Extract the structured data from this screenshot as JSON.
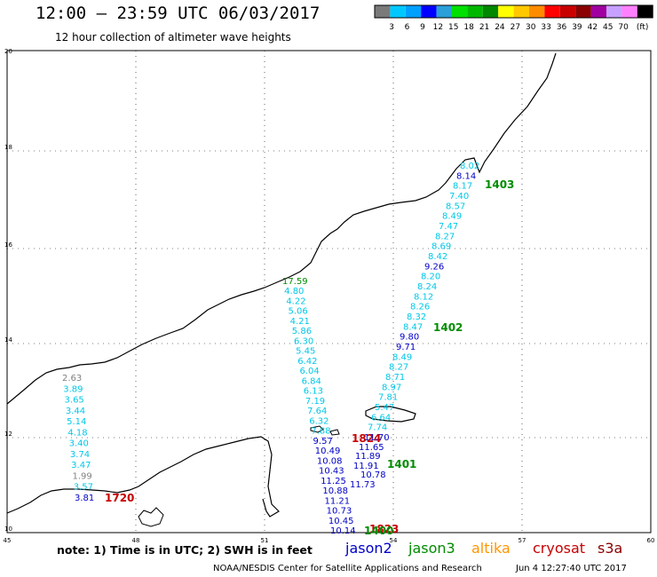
{
  "header": {
    "title": "12:00 – 23:59 UTC 06/03/2017",
    "subtitle": "12 hour collection of altimeter wave heights"
  },
  "colorbar": {
    "unit": "(ft)",
    "bins": [
      {
        "label": "",
        "color": "#7a7a7a"
      },
      {
        "label": "3",
        "color": "#00c8ff"
      },
      {
        "label": "6",
        "color": "#00a0ff"
      },
      {
        "label": "9",
        "color": "#0000ff"
      },
      {
        "label": "12",
        "color": "#2a9fd8"
      },
      {
        "label": "15",
        "color": "#00e000"
      },
      {
        "label": "18",
        "color": "#00b800"
      },
      {
        "label": "21",
        "color": "#008800"
      },
      {
        "label": "24",
        "color": "#ffff00"
      },
      {
        "label": "27",
        "color": "#ffc800"
      },
      {
        "label": "30",
        "color": "#ff8c00"
      },
      {
        "label": "33",
        "color": "#ff0000"
      },
      {
        "label": "36",
        "color": "#c80000"
      },
      {
        "label": "39",
        "color": "#8b0000"
      },
      {
        "label": "42",
        "color": "#a000a0"
      },
      {
        "label": "45",
        "color": "#c8a0ff"
      },
      {
        "label": "70",
        "color": "#ff80ff"
      },
      {
        "label": "",
        "color": "#000000"
      }
    ]
  },
  "map": {
    "lat_ticks": [
      "20",
      "18",
      "16",
      "14",
      "12",
      "10"
    ],
    "lon_ticks": [
      "45",
      "48",
      "51",
      "54",
      "57",
      "60"
    ],
    "colors": {
      "light": "#00c8e8",
      "dark": "#0000c8",
      "gray": "#808080",
      "green": "#008c00",
      "red": "#c80000",
      "coast": "#000000",
      "grid": "#000000"
    },
    "tracks": [
      {
        "name": "west-track",
        "labels": [
          {
            "t": "2.63",
            "c": "gray"
          },
          {
            "t": "3.89",
            "c": "light"
          },
          {
            "t": "3.65",
            "c": "light"
          },
          {
            "t": "3.44",
            "c": "light"
          },
          {
            "t": "5.14",
            "c": "light"
          },
          {
            "t": "4.18",
            "c": "light"
          },
          {
            "t": "3.40",
            "c": "light"
          },
          {
            "t": "3.74",
            "c": "light"
          },
          {
            "t": "3.47",
            "c": "light"
          },
          {
            "t": "1.99",
            "c": "gray"
          },
          {
            "t": "3.57",
            "c": "light"
          },
          {
            "t": "3.81",
            "c": "dark"
          }
        ],
        "time": "1720",
        "time_color": "red"
      },
      {
        "name": "central-track",
        "labels": [
          {
            "t": "17.59",
            "c": "green"
          },
          {
            "t": "4.80",
            "c": "light"
          },
          {
            "t": "4.22",
            "c": "light"
          },
          {
            "t": "5.06",
            "c": "light"
          },
          {
            "t": "4.21",
            "c": "light"
          },
          {
            "t": "5.86",
            "c": "light"
          },
          {
            "t": "6.30",
            "c": "light"
          },
          {
            "t": "5.45",
            "c": "light"
          },
          {
            "t": "6.42",
            "c": "light"
          },
          {
            "t": "6.04",
            "c": "light"
          },
          {
            "t": "6.84",
            "c": "light"
          },
          {
            "t": "6.13",
            "c": "light"
          },
          {
            "t": "7.19",
            "c": "light"
          },
          {
            "t": "7.64",
            "c": "light"
          },
          {
            "t": "6.32",
            "c": "light"
          },
          {
            "t": "7.88",
            "c": "light"
          },
          {
            "t": "9.57",
            "c": "dark"
          },
          {
            "t": "10.49",
            "c": "dark"
          },
          {
            "t": "10.08",
            "c": "dark"
          },
          {
            "t": "10.43",
            "c": "dark"
          },
          {
            "t": "11.25",
            "c": "dark"
          },
          {
            "t": "10.88",
            "c": "dark"
          },
          {
            "t": "11.21",
            "c": "dark"
          },
          {
            "t": "10.73",
            "c": "dark"
          },
          {
            "t": "10.45",
            "c": "dark"
          },
          {
            "t": "10.14",
            "c": "dark"
          }
        ],
        "extra": [
          {
            "t": "11.65",
            "c": "dark"
          },
          {
            "t": "11.89",
            "c": "dark"
          },
          {
            "t": "11.91",
            "c": "dark"
          },
          {
            "t": "10.78",
            "c": "dark"
          },
          {
            "t": "11.73",
            "c": "dark"
          }
        ],
        "times": [
          {
            "t": "1824",
            "c": "red"
          },
          {
            "t": "1401",
            "c": "green"
          },
          {
            "t": "1823",
            "c": "red"
          },
          {
            "t": "1400",
            "c": "green"
          }
        ]
      },
      {
        "name": "east-track",
        "labels": [
          {
            "t": "8.02",
            "c": "light"
          },
          {
            "t": "8.14",
            "c": "dark"
          },
          {
            "t": "8.17",
            "c": "light"
          },
          {
            "t": "7.40",
            "c": "light"
          },
          {
            "t": "8.57",
            "c": "light"
          },
          {
            "t": "8.49",
            "c": "light"
          },
          {
            "t": "7.47",
            "c": "light"
          },
          {
            "t": "8.27",
            "c": "light"
          },
          {
            "t": "8.69",
            "c": "light"
          },
          {
            "t": "8.42",
            "c": "light"
          },
          {
            "t": "9.26",
            "c": "dark"
          },
          {
            "t": "8.20",
            "c": "light"
          },
          {
            "t": "8.24",
            "c": "light"
          },
          {
            "t": "8.12",
            "c": "light"
          },
          {
            "t": "8.26",
            "c": "light"
          },
          {
            "t": "8.32",
            "c": "light"
          },
          {
            "t": "8.47",
            "c": "light"
          },
          {
            "t": "9.80",
            "c": "dark"
          },
          {
            "t": "9.71",
            "c": "dark"
          },
          {
            "t": "8.49",
            "c": "light"
          },
          {
            "t": "8.27",
            "c": "light"
          },
          {
            "t": "8.71",
            "c": "light"
          },
          {
            "t": "8.97",
            "c": "light"
          },
          {
            "t": "7.81",
            "c": "light"
          },
          {
            "t": "5.47",
            "c": "light"
          },
          {
            "t": "6.64",
            "c": "light"
          },
          {
            "t": "7.74",
            "c": "light"
          },
          {
            "t": "11.70",
            "c": "dark"
          }
        ],
        "times": [
          {
            "t": "1403",
            "c": "green"
          },
          {
            "t": "1402",
            "c": "green"
          }
        ]
      }
    ]
  },
  "footer": {
    "note": "note: 1) Time is in UTC; 2) SWH is in feet",
    "legend": [
      {
        "t": "jason2",
        "color": "#0000c8"
      },
      {
        "t": "jason3",
        "color": "#008c00"
      },
      {
        "t": "altika",
        "color": "#ff9600"
      },
      {
        "t": "cryosat",
        "color": "#c80000"
      },
      {
        "t": "s3a",
        "color": "#8b0000"
      }
    ],
    "credit": "NOAA/NESDIS Center for Satellite Applications and Research",
    "timestamp": "Jun  4 12:27:40 UTC 2017"
  }
}
